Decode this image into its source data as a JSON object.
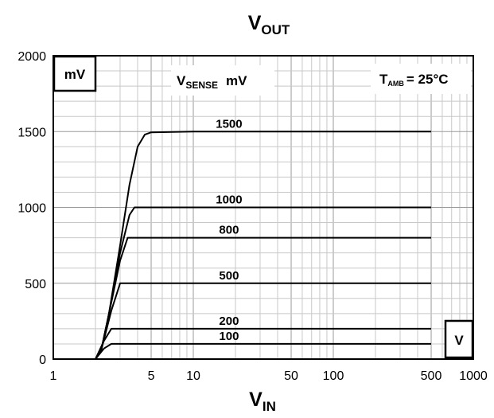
{
  "chart_data": {
    "type": "line",
    "title": {
      "main": "V",
      "sub": "OUT"
    },
    "xlabel": {
      "main": "V",
      "sub": "IN"
    },
    "x_scale": "log",
    "xlim": [
      1,
      1000
    ],
    "ylim": [
      0,
      2000
    ],
    "x_ticks": [
      1,
      5,
      10,
      50,
      100,
      500,
      1000
    ],
    "x_tick_labels": [
      "1",
      "5",
      "10",
      "50",
      "100",
      "500",
      "1000"
    ],
    "y_ticks": [
      0,
      500,
      1000,
      1500,
      2000
    ],
    "y_tick_labels": [
      "0",
      "500",
      "1000",
      "1500",
      "2000"
    ],
    "grid": true,
    "y_unit_box": "mV",
    "x_unit_box": "V",
    "legend_title": {
      "main": "V",
      "sub": "SENSE",
      "unit": "mV"
    },
    "condition": {
      "main": "T",
      "sub": "AMB",
      "rest": "= 25°C"
    },
    "series": [
      {
        "name": "1500",
        "values": [
          [
            2,
            0
          ],
          [
            2.2,
            60
          ],
          [
            2.5,
            300
          ],
          [
            3,
            750
          ],
          [
            3.5,
            1150
          ],
          [
            4,
            1400
          ],
          [
            4.5,
            1480
          ],
          [
            5,
            1495
          ],
          [
            10,
            1500
          ],
          [
            500,
            1500
          ]
        ]
      },
      {
        "name": "1000",
        "values": [
          [
            2,
            0
          ],
          [
            2.2,
            60
          ],
          [
            2.5,
            300
          ],
          [
            3,
            700
          ],
          [
            3.5,
            950
          ],
          [
            3.8,
            1000
          ],
          [
            10,
            1000
          ],
          [
            500,
            1000
          ]
        ]
      },
      {
        "name": "800",
        "values": [
          [
            2,
            0
          ],
          [
            2.2,
            60
          ],
          [
            2.5,
            300
          ],
          [
            3,
            650
          ],
          [
            3.4,
            800
          ],
          [
            10,
            800
          ],
          [
            500,
            800
          ]
        ]
      },
      {
        "name": "500",
        "values": [
          [
            2,
            0
          ],
          [
            2.2,
            60
          ],
          [
            2.6,
            320
          ],
          [
            3,
            500
          ],
          [
            10,
            500
          ],
          [
            500,
            500
          ]
        ]
      },
      {
        "name": "200",
        "values": [
          [
            2,
            0
          ],
          [
            2.3,
            120
          ],
          [
            2.6,
            200
          ],
          [
            10,
            200
          ],
          [
            500,
            200
          ]
        ]
      },
      {
        "name": "100",
        "values": [
          [
            2,
            0
          ],
          [
            2.3,
            70
          ],
          [
            2.6,
            100
          ],
          [
            10,
            100
          ],
          [
            500,
            100
          ]
        ]
      }
    ]
  }
}
